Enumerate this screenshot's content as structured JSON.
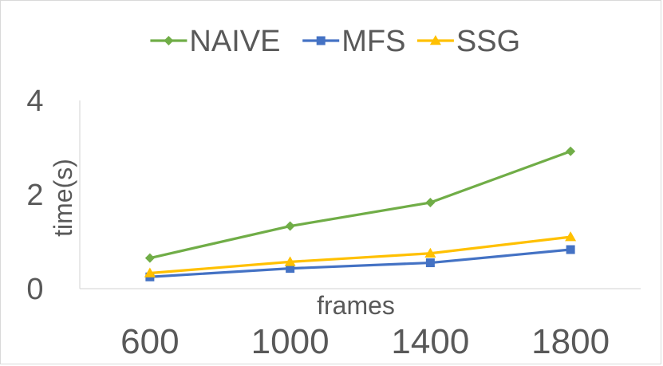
{
  "chart_data": {
    "type": "line",
    "title": "",
    "xlabel": "frames",
    "ylabel": "time(s)",
    "categories": [
      "600",
      "1000",
      "1400",
      "1800"
    ],
    "ylim": [
      0,
      4
    ],
    "yticks": [
      "0",
      "2",
      "4"
    ],
    "grid": false,
    "legend_position": "top",
    "series": [
      {
        "name": "NAIVE",
        "values": [
          0.65,
          1.33,
          1.83,
          2.92
        ],
        "color": "#70ad47",
        "marker": "diamond"
      },
      {
        "name": "MFS",
        "values": [
          0.25,
          0.43,
          0.55,
          0.83
        ],
        "color": "#4472c4",
        "marker": "square"
      },
      {
        "name": "SSG",
        "values": [
          0.33,
          0.57,
          0.75,
          1.1
        ],
        "color": "#ffc000",
        "marker": "triangle"
      }
    ]
  }
}
